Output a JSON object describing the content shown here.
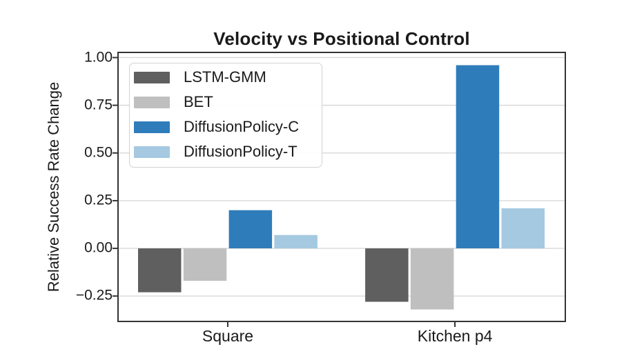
{
  "chart_data": {
    "type": "bar",
    "title": "Velocity vs Positional Control",
    "xlabel": "",
    "ylabel": "Relative Success Rate Change",
    "categories": [
      "Square",
      "Kitchen p4"
    ],
    "series": [
      {
        "name": "LSTM-GMM",
        "color": "#5f5f5f",
        "values": [
          -0.23,
          -0.28
        ]
      },
      {
        "name": "BET",
        "color": "#bfbfbf",
        "values": [
          -0.17,
          -0.32
        ]
      },
      {
        "name": "DiffusionPolicy-C",
        "color": "#2f7cba",
        "values": [
          0.2,
          0.96
        ]
      },
      {
        "name": "DiffusionPolicy-T",
        "color": "#a5c9e1",
        "values": [
          0.07,
          0.21
        ]
      }
    ],
    "yticks": [
      1.0,
      0.75,
      0.5,
      0.25,
      0.0,
      -0.25
    ],
    "ytick_labels": [
      "1.00",
      "0.75",
      "0.50",
      "0.25",
      "0.00",
      "−0.25"
    ],
    "ylim": [
      -0.383,
      1.027
    ],
    "xlim": [
      -0.483,
      1.486
    ],
    "bar_width": 0.19,
    "bar_offsets": [
      -0.3,
      -0.1,
      0.1,
      0.3
    ],
    "grid": true,
    "legend_position": "upper left",
    "colors": {
      "grid": "#d8d8d8",
      "spine": "#333333",
      "text": "#1a1a1a",
      "background": "#ffffff"
    }
  }
}
